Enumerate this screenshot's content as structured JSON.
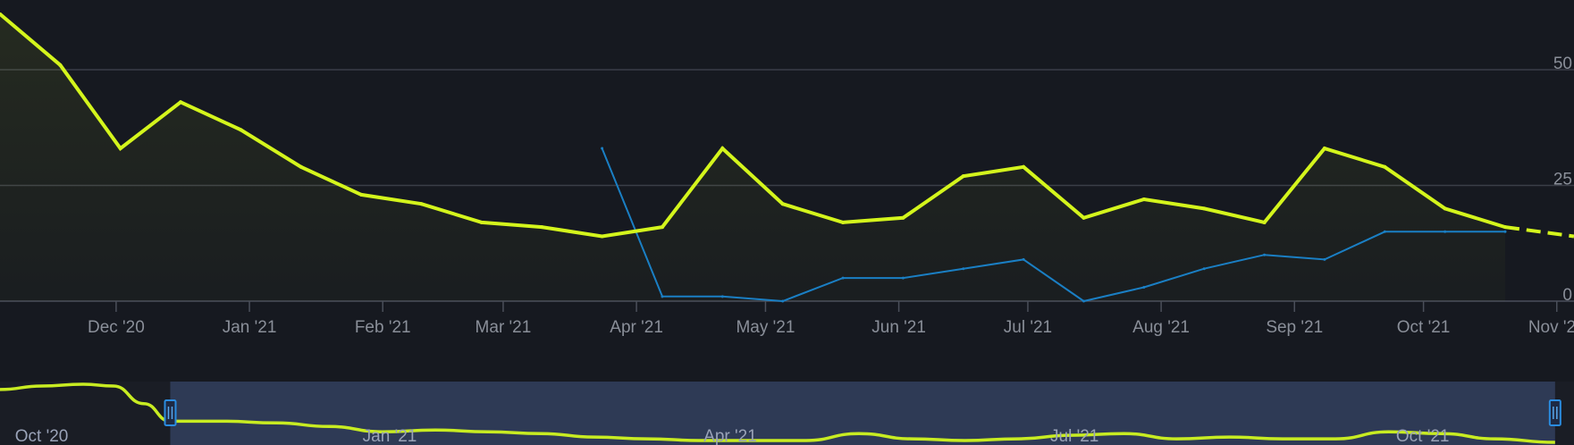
{
  "chart_data": {
    "type": "line",
    "title": "",
    "xlabel": "",
    "ylabel": "",
    "x_range": [
      "2020-11-04",
      "2021-11-05"
    ],
    "ylim": [
      0,
      50
    ],
    "y_ticks": [
      0,
      25,
      50
    ],
    "x_ticks": [
      {
        "date": "2020-12-01",
        "label": "Dec '20"
      },
      {
        "date": "2021-01-01",
        "label": "Jan '21"
      },
      {
        "date": "2021-02-01",
        "label": "Feb '21"
      },
      {
        "date": "2021-03-01",
        "label": "Mar '21"
      },
      {
        "date": "2021-04-01",
        "label": "Apr '21"
      },
      {
        "date": "2021-05-01",
        "label": "May '21"
      },
      {
        "date": "2021-06-01",
        "label": "Jun '21"
      },
      {
        "date": "2021-07-01",
        "label": "Jul '21"
      },
      {
        "date": "2021-08-01",
        "label": "Aug '21"
      },
      {
        "date": "2021-09-01",
        "label": "Sep '21"
      },
      {
        "date": "2021-10-01",
        "label": "Oct '21"
      },
      {
        "date": "2021-11-01",
        "label": "Nov '21"
      }
    ],
    "grid": true,
    "colors": {
      "series1": "#d4f51c",
      "series2": "#1a7fc4",
      "grid": "#3a3e48",
      "navigator_mask": "#2e3a55"
    },
    "series": [
      {
        "color": "#d4f51c",
        "area": true,
        "values": [
          {
            "x": "2020-11-04",
            "y": 62
          },
          {
            "x": "2020-11-18",
            "y": 51
          },
          {
            "x": "2020-12-02",
            "y": 33
          },
          {
            "x": "2020-12-16",
            "y": 43
          },
          {
            "x": "2020-12-30",
            "y": 37
          },
          {
            "x": "2021-01-13",
            "y": 29
          },
          {
            "x": "2021-01-27",
            "y": 23
          },
          {
            "x": "2021-02-10",
            "y": 21
          },
          {
            "x": "2021-02-24",
            "y": 17
          },
          {
            "x": "2021-03-10",
            "y": 16
          },
          {
            "x": "2021-03-24",
            "y": 14
          },
          {
            "x": "2021-04-07",
            "y": 16
          },
          {
            "x": "2021-04-21",
            "y": 33
          },
          {
            "x": "2021-05-05",
            "y": 21
          },
          {
            "x": "2021-05-19",
            "y": 17
          },
          {
            "x": "2021-06-02",
            "y": 18
          },
          {
            "x": "2021-06-16",
            "y": 27
          },
          {
            "x": "2021-06-30",
            "y": 29
          },
          {
            "x": "2021-07-14",
            "y": 18
          },
          {
            "x": "2021-07-28",
            "y": 22
          },
          {
            "x": "2021-08-11",
            "y": 20
          },
          {
            "x": "2021-08-25",
            "y": 17
          },
          {
            "x": "2021-09-08",
            "y": 33
          },
          {
            "x": "2021-09-22",
            "y": 29
          },
          {
            "x": "2021-10-06",
            "y": 20
          },
          {
            "x": "2021-10-20",
            "y": 16
          }
        ],
        "projection": [
          {
            "x": "2021-10-20",
            "y": 16
          },
          {
            "x": "2021-11-05",
            "y": 14
          }
        ]
      },
      {
        "color": "#1a7fc4",
        "values": [
          {
            "x": "2021-03-24",
            "y": 33
          },
          {
            "x": "2021-04-07",
            "y": 1
          },
          {
            "x": "2021-04-21",
            "y": 1
          },
          {
            "x": "2021-05-05",
            "y": 0
          },
          {
            "x": "2021-05-19",
            "y": 5
          },
          {
            "x": "2021-06-02",
            "y": 5
          },
          {
            "x": "2021-06-16",
            "y": 7
          },
          {
            "x": "2021-06-30",
            "y": 9
          },
          {
            "x": "2021-07-14",
            "y": 0
          },
          {
            "x": "2021-07-28",
            "y": 3
          },
          {
            "x": "2021-08-11",
            "y": 7
          },
          {
            "x": "2021-08-25",
            "y": 10
          },
          {
            "x": "2021-09-08",
            "y": 9
          },
          {
            "x": "2021-09-22",
            "y": 15
          },
          {
            "x": "2021-10-06",
            "y": 15
          },
          {
            "x": "2021-10-20",
            "y": 15
          }
        ]
      }
    ],
    "navigator": {
      "x_range": [
        "2020-09-20",
        "2021-11-10"
      ],
      "selected_range": [
        "2020-11-04",
        "2021-11-05"
      ],
      "labels": [
        {
          "date": "2020-10-01",
          "label": "Oct '20"
        },
        {
          "date": "2021-01-01",
          "label": "Jan '21"
        },
        {
          "date": "2021-04-01",
          "label": "Apr '21"
        },
        {
          "date": "2021-07-01",
          "label": "Jul '21"
        },
        {
          "date": "2021-10-01",
          "label": "Oct '21"
        }
      ],
      "values": [
        {
          "x": "2020-09-20",
          "y": 30
        },
        {
          "x": "2020-10-01",
          "y": 32
        },
        {
          "x": "2020-10-12",
          "y": 33
        },
        {
          "x": "2020-10-20",
          "y": 32
        },
        {
          "x": "2020-10-28",
          "y": 22
        },
        {
          "x": "2020-11-04",
          "y": 12
        },
        {
          "x": "2020-11-18",
          "y": 12
        },
        {
          "x": "2020-12-02",
          "y": 11
        },
        {
          "x": "2020-12-16",
          "y": 9
        },
        {
          "x": "2020-12-30",
          "y": 6
        },
        {
          "x": "2021-01-13",
          "y": 7
        },
        {
          "x": "2021-01-27",
          "y": 6
        },
        {
          "x": "2021-02-10",
          "y": 5
        },
        {
          "x": "2021-02-24",
          "y": 3
        },
        {
          "x": "2021-03-10",
          "y": 2
        },
        {
          "x": "2021-03-24",
          "y": 1
        },
        {
          "x": "2021-04-07",
          "y": 1
        },
        {
          "x": "2021-04-21",
          "y": 1
        },
        {
          "x": "2021-05-05",
          "y": 5
        },
        {
          "x": "2021-05-19",
          "y": 2
        },
        {
          "x": "2021-06-02",
          "y": 1
        },
        {
          "x": "2021-06-16",
          "y": 2
        },
        {
          "x": "2021-06-30",
          "y": 4
        },
        {
          "x": "2021-07-14",
          "y": 5
        },
        {
          "x": "2021-07-28",
          "y": 2
        },
        {
          "x": "2021-08-11",
          "y": 3
        },
        {
          "x": "2021-08-25",
          "y": 2
        },
        {
          "x": "2021-09-08",
          "y": 2
        },
        {
          "x": "2021-09-22",
          "y": 6
        },
        {
          "x": "2021-10-06",
          "y": 5
        },
        {
          "x": "2021-10-20",
          "y": 2
        },
        {
          "x": "2021-11-05",
          "y": 0
        }
      ]
    }
  }
}
